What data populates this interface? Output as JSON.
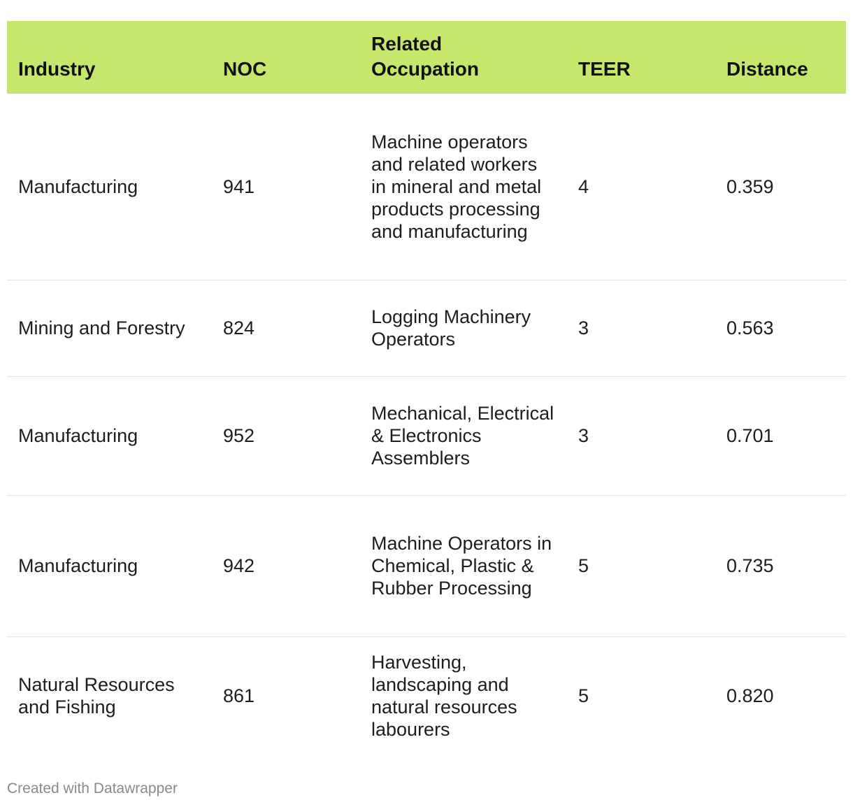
{
  "chart_data": {
    "type": "table",
    "columns": [
      "Industry",
      "NOC",
      "Related Occupation",
      "TEER",
      "Distance"
    ],
    "rows": [
      {
        "industry": "Manufacturing",
        "noc": "941",
        "occupation": "Machine operators and related workers in mineral and metal products processing and manufacturing",
        "teer": "4",
        "distance": "0.359"
      },
      {
        "industry": "Mining and Forestry",
        "noc": "824",
        "occupation": "Logging Machinery Operators",
        "teer": "3",
        "distance": "0.563"
      },
      {
        "industry": "Manufacturing",
        "noc": "952",
        "occupation": "Mechanical, Electrical & Electronics Assemblers",
        "teer": "3",
        "distance": "0.701"
      },
      {
        "industry": "Manufacturing",
        "noc": "942",
        "occupation": "Machine Operators in Chemical, Plastic & Rubber Processing",
        "teer": "5",
        "distance": "0.735"
      },
      {
        "industry": "Natural Resources and Fishing",
        "noc": "861",
        "occupation": "Harvesting, landscaping and natural resources labourers",
        "teer": "5",
        "distance": "0.820"
      }
    ]
  },
  "footer": "Created with Datawrapper",
  "colors": {
    "header_background": "#c5e86c",
    "row_divider": "#e3e3e3",
    "footer_text": "#8a8a8a"
  }
}
